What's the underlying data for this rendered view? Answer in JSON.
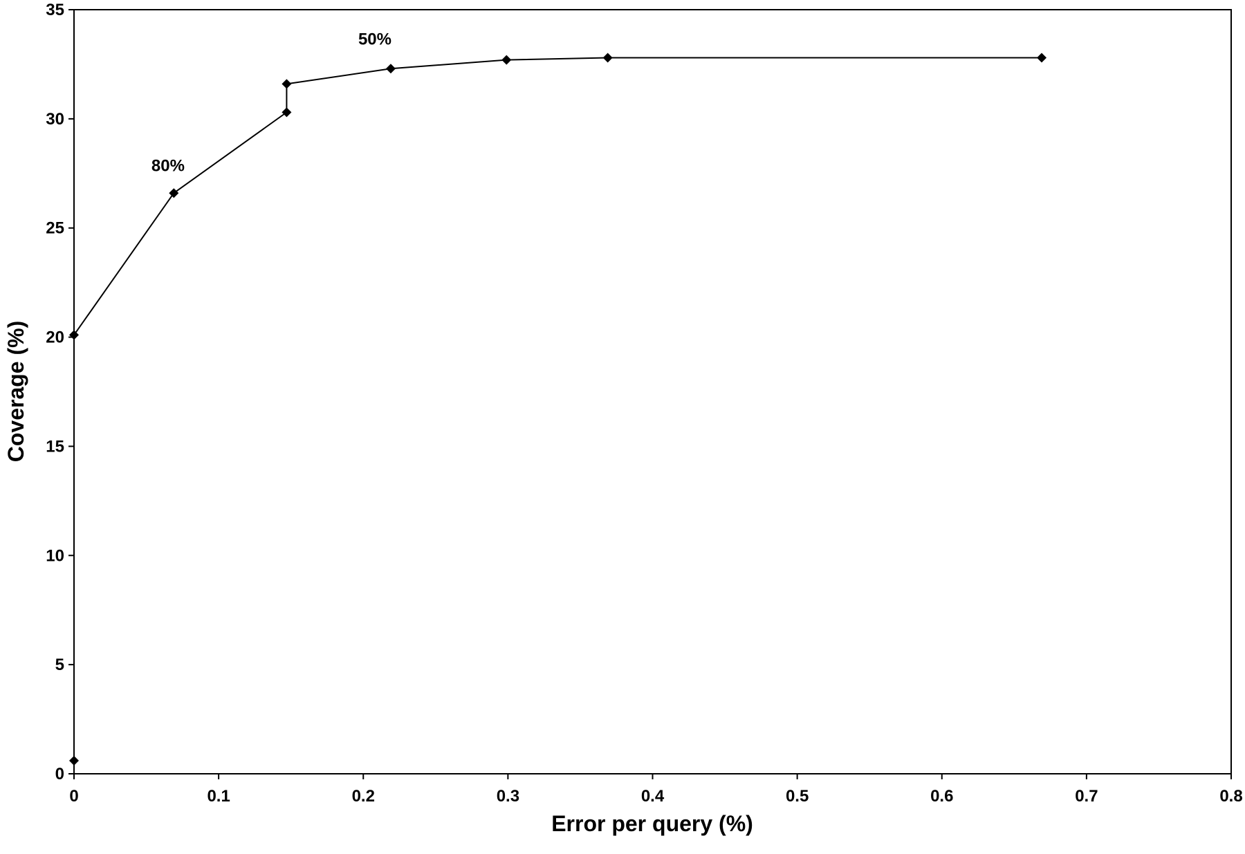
{
  "chart_data": {
    "type": "line",
    "title": "",
    "xlabel": "Error per query (%)",
    "ylabel": "Coverage (%)",
    "xlim": [
      0,
      0.8
    ],
    "ylim": [
      0,
      35
    ],
    "x_ticks": [
      0,
      0.1,
      0.2,
      0.3,
      0.4,
      0.5,
      0.6,
      0.7,
      0.8
    ],
    "x_tick_labels": [
      "0",
      "0.1",
      "0.2",
      "0.3",
      "0.4",
      "0.5",
      "0.6",
      "0.7",
      "0.8"
    ],
    "y_ticks": [
      0,
      5,
      10,
      15,
      20,
      25,
      30,
      35
    ],
    "y_tick_labels": [
      "0",
      "5",
      "10",
      "15",
      "20",
      "25",
      "30",
      "35"
    ],
    "grid": false,
    "legend": "none",
    "series": [
      {
        "marker": "diamond",
        "color": "#000000",
        "points": [
          {
            "x": 0,
            "y": 0.6
          },
          {
            "x": 0,
            "y": 20.1
          },
          {
            "x": 0.069,
            "y": 26.6
          },
          {
            "x": 0.147,
            "y": 30.3
          },
          {
            "x": 0.147,
            "y": 31.6
          },
          {
            "x": 0.219,
            "y": 32.3
          },
          {
            "x": 0.299,
            "y": 32.7
          },
          {
            "x": 0.369,
            "y": 32.8
          },
          {
            "x": 0.669,
            "y": 32.8
          }
        ]
      }
    ],
    "annotations": [
      {
        "text": "80%",
        "x": 0.065,
        "y": 27.6
      },
      {
        "text": "50%",
        "x": 0.208,
        "y": 33.4
      }
    ]
  }
}
